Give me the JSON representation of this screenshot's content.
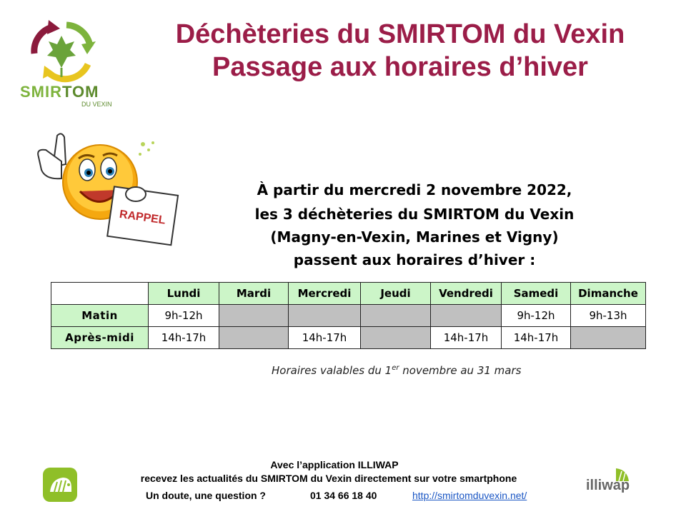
{
  "logo": {
    "name_part1": "SMIR",
    "name_part2": "TOM",
    "subtitle": "DU VEXIN"
  },
  "title": {
    "line1": "Déchèteries du SMIRTOM du Vexin",
    "line2": "Passage aux horaires d’hiver"
  },
  "reminder_badge": "RAPPEL",
  "announcement": {
    "line1": "À partir du mercredi 2 novembre 2022,",
    "line2": "les 3 déchèteries du SMIRTOM du Vexin",
    "line3": "(Magny-en-Vexin, Marines et Vigny)",
    "line4": "passent aux horaires d’hiver :"
  },
  "schedule": {
    "days": [
      "Lundi",
      "Mardi",
      "Mercredi",
      "Jeudi",
      "Vendredi",
      "Samedi",
      "Dimanche"
    ],
    "rows": [
      {
        "label": "Matin",
        "cells": [
          "9h-12h",
          "",
          "",
          "",
          "",
          "9h-12h",
          "9h-13h"
        ]
      },
      {
        "label": "Après-midi",
        "cells": [
          "14h-17h",
          "",
          "14h-17h",
          "",
          "14h-17h",
          "14h-17h",
          ""
        ]
      }
    ]
  },
  "validity": {
    "before": "Horaires valables du 1",
    "sup": "er",
    "after": " novembre au 31 mars"
  },
  "footer": {
    "app_line": "Avec l’application ILLIWAP",
    "news_line": "recevez les actualités du SMIRTOM du Vexin directement sur votre smartphone",
    "doubt_label": "Un doute, une question ?",
    "phone": "01 34 66 18 40",
    "website": "http://smirtomduvexin.net/",
    "illiwap_brand": "illiwap"
  },
  "colors": {
    "title": "#9b1d48",
    "header_bg": "#ccf5c8",
    "closed_bg": "#c0c0c0",
    "link": "#1a56c4",
    "logo_green": "#7db33c"
  }
}
